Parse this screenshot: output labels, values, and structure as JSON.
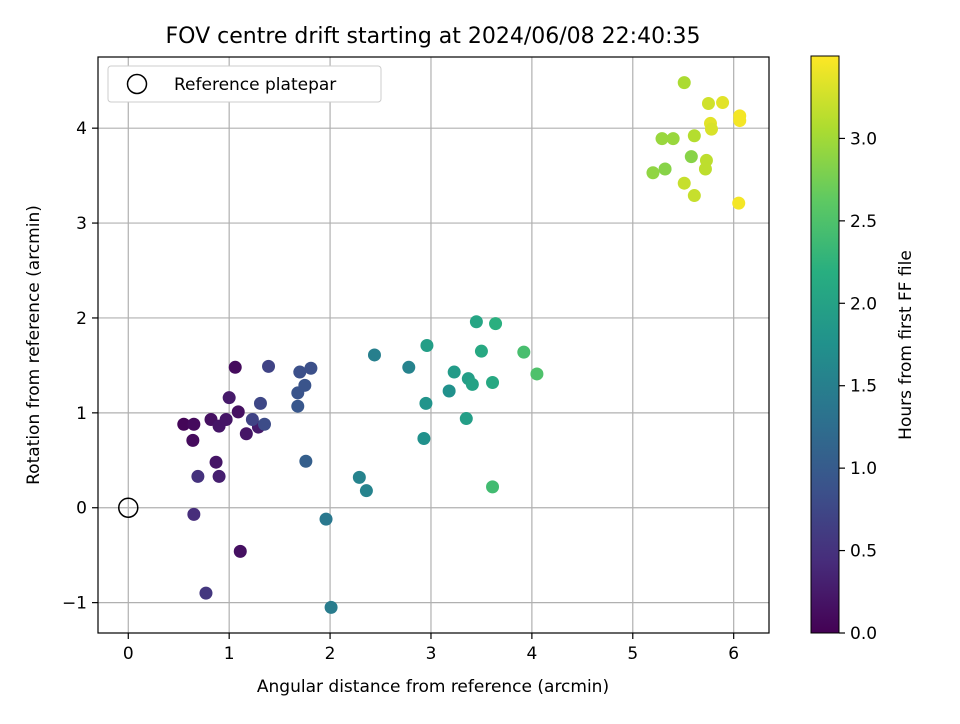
{
  "chart_data": {
    "type": "scatter",
    "title": "FOV centre drift starting at 2024/06/08 22:40:35",
    "xlabel": "Angular distance from reference (arcmin)",
    "ylabel": "Rotation from reference (arcmin)",
    "xlim": [
      -0.3,
      6.35
    ],
    "ylim": [
      -1.32,
      4.75
    ],
    "xticks": [
      0,
      1,
      2,
      3,
      4,
      5,
      6
    ],
    "xtick_labels": [
      "0",
      "1",
      "2",
      "3",
      "4",
      "5",
      "6"
    ],
    "yticks": [
      -1,
      0,
      1,
      2,
      3,
      4
    ],
    "ytick_labels": [
      "−1",
      "0",
      "1",
      "2",
      "3",
      "4"
    ],
    "grid": true,
    "legend": {
      "placement": "top-left",
      "entries": [
        {
          "label": "Reference platepar",
          "marker": "open-circle",
          "color": "#000000"
        }
      ]
    },
    "reference_point": {
      "x": 0,
      "y": 0
    },
    "colorbar": {
      "label": "Hours from first FF file",
      "range": [
        0.0,
        3.5
      ],
      "ticks": [
        0.0,
        0.5,
        1.0,
        1.5,
        2.0,
        2.5,
        3.0
      ],
      "tick_labels": [
        "0.0",
        "0.5",
        "1.0",
        "1.5",
        "2.0",
        "2.5",
        "3.0"
      ],
      "colormap": "viridis"
    },
    "series": [
      {
        "points": [
          {
            "x": 0.55,
            "y": 0.88,
            "c": 0.05
          },
          {
            "x": 0.65,
            "y": 0.88,
            "c": 0.1
          },
          {
            "x": 0.64,
            "y": 0.71,
            "c": 0.1
          },
          {
            "x": 0.82,
            "y": 0.93,
            "c": 0.15
          },
          {
            "x": 0.9,
            "y": 0.86,
            "c": 0.2
          },
          {
            "x": 0.97,
            "y": 0.93,
            "c": 0.2
          },
          {
            "x": 1.0,
            "y": 1.16,
            "c": 0.25
          },
          {
            "x": 1.09,
            "y": 1.01,
            "c": 0.15
          },
          {
            "x": 1.06,
            "y": 1.48,
            "c": 0.1
          },
          {
            "x": 0.87,
            "y": 0.48,
            "c": 0.2
          },
          {
            "x": 0.9,
            "y": 0.33,
            "c": 0.3
          },
          {
            "x": 1.17,
            "y": 0.78,
            "c": 0.2
          },
          {
            "x": 1.29,
            "y": 0.85,
            "c": 0.25
          },
          {
            "x": 1.11,
            "y": -0.46,
            "c": 0.15
          },
          {
            "x": 0.69,
            "y": 0.33,
            "c": 0.5
          },
          {
            "x": 0.65,
            "y": -0.07,
            "c": 0.45
          },
          {
            "x": 0.77,
            "y": -0.9,
            "c": 0.55
          },
          {
            "x": 1.23,
            "y": 0.93,
            "c": 0.7
          },
          {
            "x": 1.31,
            "y": 1.1,
            "c": 0.75
          },
          {
            "x": 1.35,
            "y": 0.88,
            "c": 0.8
          },
          {
            "x": 1.39,
            "y": 1.49,
            "c": 0.7
          },
          {
            "x": 1.7,
            "y": 1.43,
            "c": 0.85
          },
          {
            "x": 1.81,
            "y": 1.47,
            "c": 0.85
          },
          {
            "x": 1.68,
            "y": 1.21,
            "c": 0.9
          },
          {
            "x": 1.75,
            "y": 1.29,
            "c": 0.9
          },
          {
            "x": 1.68,
            "y": 1.07,
            "c": 0.95
          },
          {
            "x": 1.76,
            "y": 0.49,
            "c": 1.05
          },
          {
            "x": 1.96,
            "y": -0.12,
            "c": 1.4
          },
          {
            "x": 2.01,
            "y": -1.05,
            "c": 1.45
          },
          {
            "x": 2.29,
            "y": 0.32,
            "c": 1.55
          },
          {
            "x": 2.36,
            "y": 0.18,
            "c": 1.55
          },
          {
            "x": 2.44,
            "y": 1.61,
            "c": 1.5
          },
          {
            "x": 2.78,
            "y": 1.48,
            "c": 1.55
          },
          {
            "x": 2.93,
            "y": 0.73,
            "c": 1.75
          },
          {
            "x": 2.95,
            "y": 1.1,
            "c": 1.8
          },
          {
            "x": 2.96,
            "y": 1.71,
            "c": 1.95
          },
          {
            "x": 3.18,
            "y": 1.23,
            "c": 1.75
          },
          {
            "x": 3.23,
            "y": 1.43,
            "c": 1.9
          },
          {
            "x": 3.35,
            "y": 0.94,
            "c": 1.95
          },
          {
            "x": 3.37,
            "y": 1.36,
            "c": 1.95
          },
          {
            "x": 3.41,
            "y": 1.3,
            "c": 2.0
          },
          {
            "x": 3.45,
            "y": 1.96,
            "c": 2.05
          },
          {
            "x": 3.5,
            "y": 1.65,
            "c": 2.1
          },
          {
            "x": 3.61,
            "y": 1.32,
            "c": 2.1
          },
          {
            "x": 3.64,
            "y": 1.94,
            "c": 2.2
          },
          {
            "x": 3.61,
            "y": 0.22,
            "c": 2.4
          },
          {
            "x": 3.92,
            "y": 1.64,
            "c": 2.45
          },
          {
            "x": 4.05,
            "y": 1.41,
            "c": 2.5
          },
          {
            "x": 5.2,
            "y": 3.53,
            "c": 2.9
          },
          {
            "x": 5.29,
            "y": 3.89,
            "c": 2.95
          },
          {
            "x": 5.32,
            "y": 3.57,
            "c": 2.85
          },
          {
            "x": 5.4,
            "y": 3.89,
            "c": 2.95
          },
          {
            "x": 5.58,
            "y": 3.7,
            "c": 2.85
          },
          {
            "x": 5.51,
            "y": 3.42,
            "c": 3.2
          },
          {
            "x": 5.51,
            "y": 4.48,
            "c": 3.05
          },
          {
            "x": 5.61,
            "y": 3.92,
            "c": 3.1
          },
          {
            "x": 5.61,
            "y": 3.29,
            "c": 3.2
          },
          {
            "x": 5.73,
            "y": 3.66,
            "c": 3.15
          },
          {
            "x": 5.72,
            "y": 3.57,
            "c": 3.15
          },
          {
            "x": 5.75,
            "y": 4.26,
            "c": 3.25
          },
          {
            "x": 5.77,
            "y": 4.05,
            "c": 3.35
          },
          {
            "x": 5.78,
            "y": 3.99,
            "c": 3.3
          },
          {
            "x": 5.89,
            "y": 4.27,
            "c": 3.35
          },
          {
            "x": 6.06,
            "y": 4.13,
            "c": 3.45
          },
          {
            "x": 6.06,
            "y": 4.08,
            "c": 3.45
          },
          {
            "x": 6.05,
            "y": 3.21,
            "c": 3.45
          }
        ]
      }
    ]
  }
}
